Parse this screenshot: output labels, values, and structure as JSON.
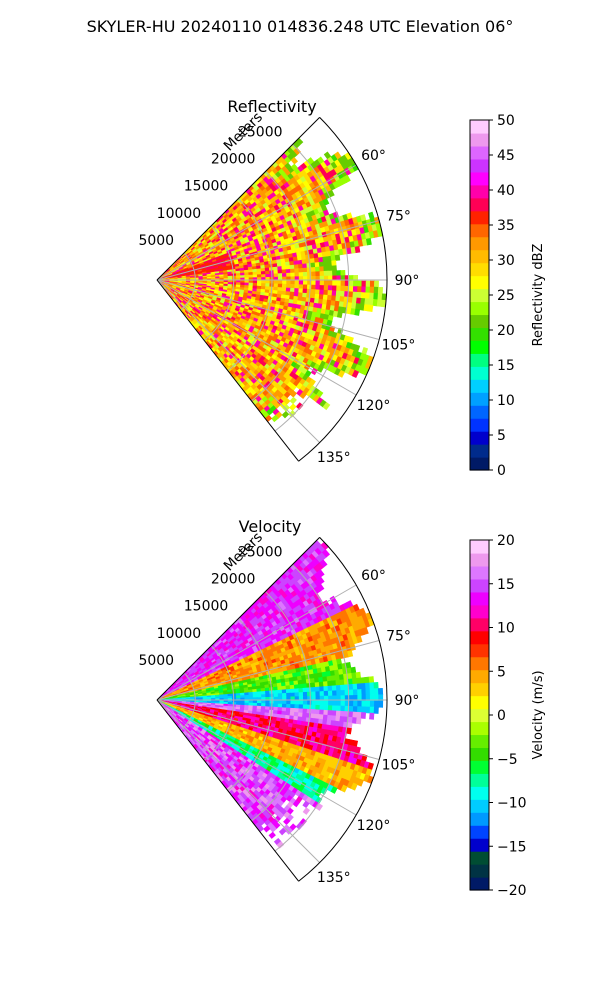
{
  "figure": {
    "suptitle": "SKYLER-HU  20240110  014836.248 UTC Elevation 06°"
  },
  "colors": {
    "refl_cmap": [
      "#001a66",
      "#002b8c",
      "#0000cc",
      "#0033ff",
      "#0066ff",
      "#00a0ff",
      "#00d0ff",
      "#00ffd0",
      "#00ff80",
      "#00ff00",
      "#33e000",
      "#66cc00",
      "#99ff00",
      "#ccff33",
      "#ffff00",
      "#ffdd00",
      "#ffbb00",
      "#ff9900",
      "#ff6600",
      "#ff2200",
      "#ff0055",
      "#ff00aa",
      "#ff00ff",
      "#cc33ff",
      "#dd66ff",
      "#ee99ee",
      "#ffccff"
    ],
    "vel_cmap": [
      "#001a66",
      "#003344",
      "#004d33",
      "#0000cc",
      "#0044ff",
      "#0099ff",
      "#00ccff",
      "#00ffee",
      "#00ff99",
      "#00ff33",
      "#33dd00",
      "#66ee00",
      "#aaff00",
      "#ddff33",
      "#ffff00",
      "#ffd000",
      "#ffaa00",
      "#ff7700",
      "#ff3300",
      "#ff0000",
      "#ff0066",
      "#ff00cc",
      "#ee00ff",
      "#cc44ff",
      "#dd77ff",
      "#ee99ee",
      "#ffccff"
    ],
    "grid": "#b0b0b0"
  },
  "chart_data": [
    {
      "type": "heatmap",
      "projection": "polar-sector",
      "title": "Reflectivity",
      "radial_label": "Meters",
      "radial_ticks": [
        5000,
        10000,
        15000,
        20000,
        25000
      ],
      "radial_tick_labels": [
        "5000",
        "10000",
        "15000",
        "20000",
        "25000"
      ],
      "radial_range": [
        0,
        30000
      ],
      "azimuth_range_deg": [
        45,
        142
      ],
      "azimuth_ticks_deg": [
        60,
        75,
        90,
        105,
        120,
        135
      ],
      "azimuth_tick_labels": [
        "60°",
        "75°",
        "90°",
        "105°",
        "120°",
        "135°"
      ],
      "grid": true,
      "colorbar": {
        "label": "Reflectivity dBZ",
        "range": [
          0,
          50
        ],
        "ticks": [
          0,
          5,
          10,
          15,
          20,
          25,
          30,
          35,
          40,
          45,
          50
        ],
        "tick_labels": [
          "0",
          "5",
          "10",
          "15",
          "20",
          "25",
          "30",
          "35",
          "40",
          "45",
          "50"
        ]
      },
      "description_values": {
        "typical_range_dbz": [
          20,
          40
        ],
        "dominant_dbz": 30,
        "max_dbz": 38
      }
    },
    {
      "type": "heatmap",
      "projection": "polar-sector",
      "title": "Velocity",
      "radial_label": "Meters",
      "radial_ticks": [
        5000,
        10000,
        15000,
        20000,
        25000
      ],
      "radial_tick_labels": [
        "5000",
        "10000",
        "15000",
        "20000",
        "25000"
      ],
      "radial_range": [
        0,
        30000
      ],
      "azimuth_range_deg": [
        45,
        142
      ],
      "azimuth_ticks_deg": [
        60,
        75,
        90,
        105,
        120,
        135
      ],
      "azimuth_tick_labels": [
        "60°",
        "75°",
        "90°",
        "105°",
        "120°",
        "135°"
      ],
      "grid": true,
      "colorbar": {
        "label": "Velocity (m/s)",
        "range": [
          -20,
          20
        ],
        "ticks": [
          -20,
          -15,
          -10,
          -5,
          0,
          5,
          10,
          15,
          20
        ],
        "tick_labels": [
          "−20",
          "−15",
          "−10",
          "−5",
          "0",
          "5",
          "10",
          "15",
          "20"
        ]
      },
      "description_values": {
        "velocity_range_ms": [
          -20,
          20
        ],
        "north_east_ms": 10,
        "east_band_ms": -10,
        "south_east_ms": 15
      }
    }
  ]
}
